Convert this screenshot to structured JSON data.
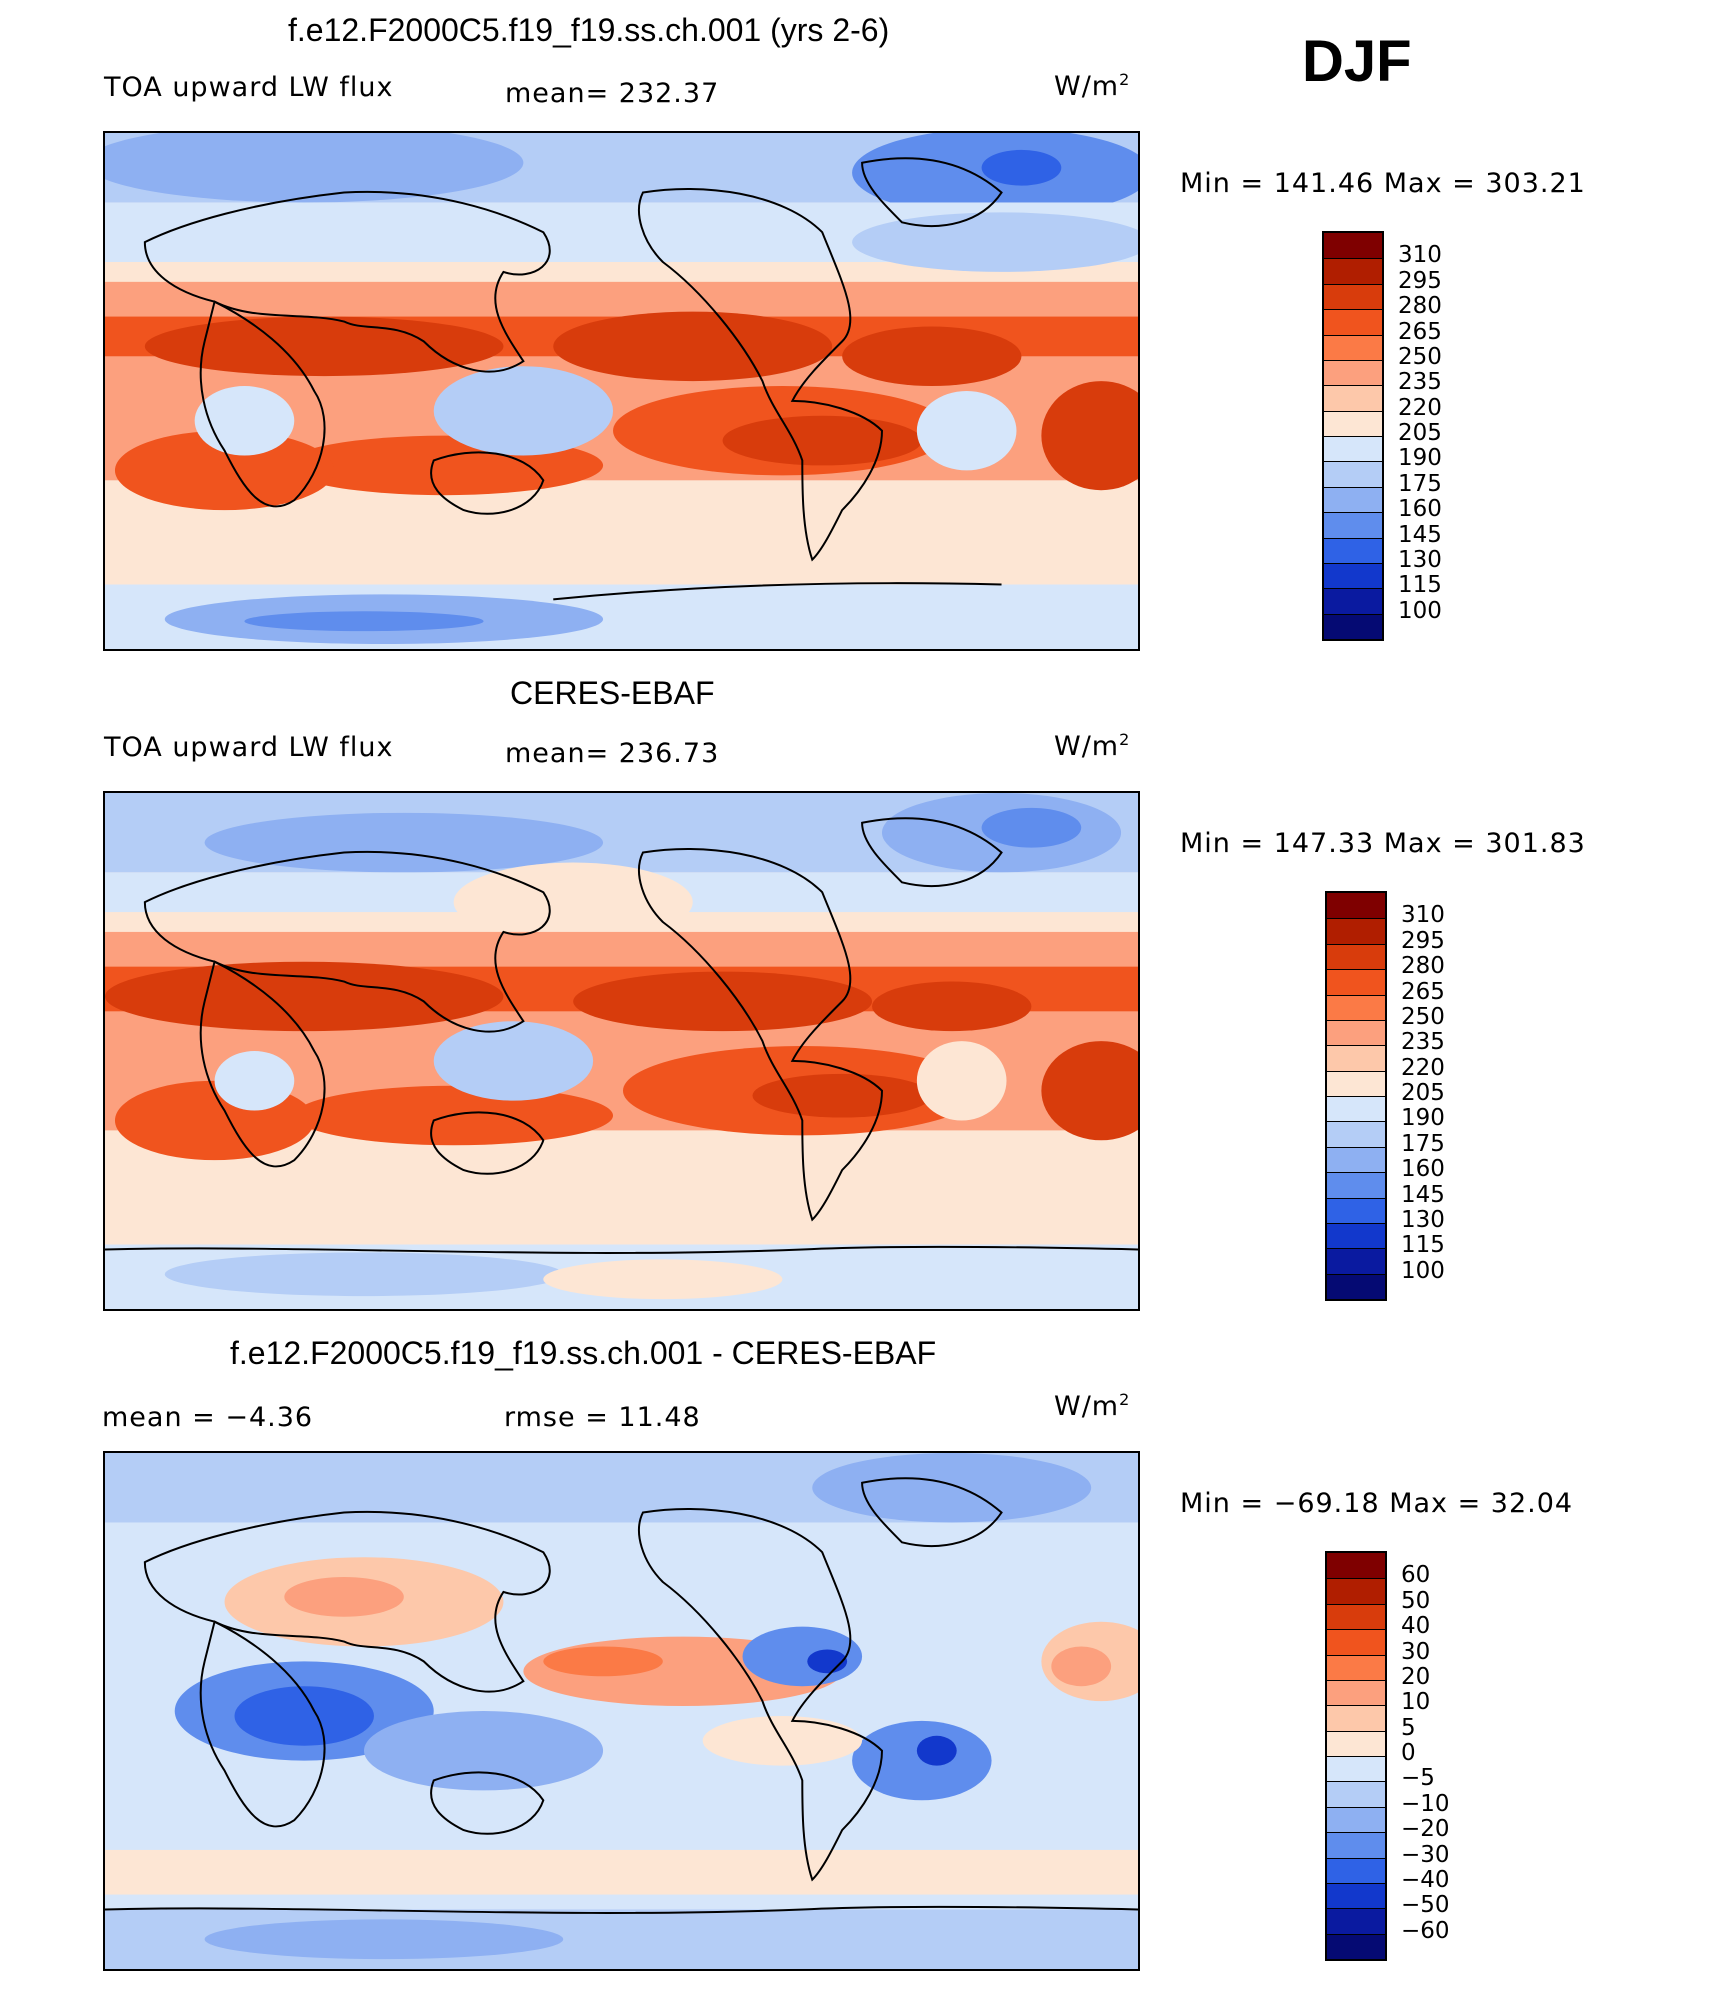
{
  "season": "DJF",
  "panels": [
    {
      "title": "f.e12.F2000C5.f19_f19.ss.ch.001 (yrs 2-6)",
      "left_label": "TOA upward LW flux",
      "center_label": "mean=  232.37",
      "units": "W/m",
      "units_sup": "2",
      "minmax": "Min  =  141.46  Max  =  303.21",
      "colorbar_labels": [
        "310",
        "295",
        "280",
        "265",
        "250",
        "235",
        "220",
        "205",
        "190",
        "175",
        "160",
        "145",
        "130",
        "115",
        "100"
      ],
      "map_description": "Field map of TOA upward longwave flux"
    },
    {
      "title": "CERES-EBAF",
      "left_label": "TOA upward LW flux",
      "center_label": "mean=  236.73",
      "units": "W/m",
      "units_sup": "2",
      "minmax": "Min  =  147.33  Max  =  301.83",
      "colorbar_labels": [
        "310",
        "295",
        "280",
        "265",
        "250",
        "235",
        "220",
        "205",
        "190",
        "175",
        "160",
        "145",
        "130",
        "115",
        "100"
      ],
      "map_description": "Field map of TOA upward longwave flux (observations)"
    },
    {
      "title": "f.e12.F2000C5.f19_f19.ss.ch.001 - CERES-EBAF",
      "left_label": "mean  =    −4.36",
      "center_label": "rmse  =    11.48",
      "units": "W/m",
      "units_sup": "2",
      "minmax": "Min  =  −69.18  Max  =    32.04",
      "colorbar_labels": [
        "60",
        "50",
        "40",
        "30",
        "20",
        "10",
        "5",
        "0",
        "−5",
        "−10",
        "−20",
        "−30",
        "−40",
        "−50",
        "−60"
      ],
      "map_description": "Difference map model minus observations"
    }
  ],
  "colors": {
    "scale": [
      "#7f0000",
      "#b01e00",
      "#d83c0c",
      "#f0541e",
      "#fb7a46",
      "#fca07e",
      "#fdc8aa",
      "#fde6d4",
      "#d6e6fa",
      "#b4cdf6",
      "#8eb0f2",
      "#5f8ded",
      "#2f62e6",
      "#1238cc",
      "#0a1aa0",
      "#050a73"
    ],
    "coast": "#000000"
  }
}
